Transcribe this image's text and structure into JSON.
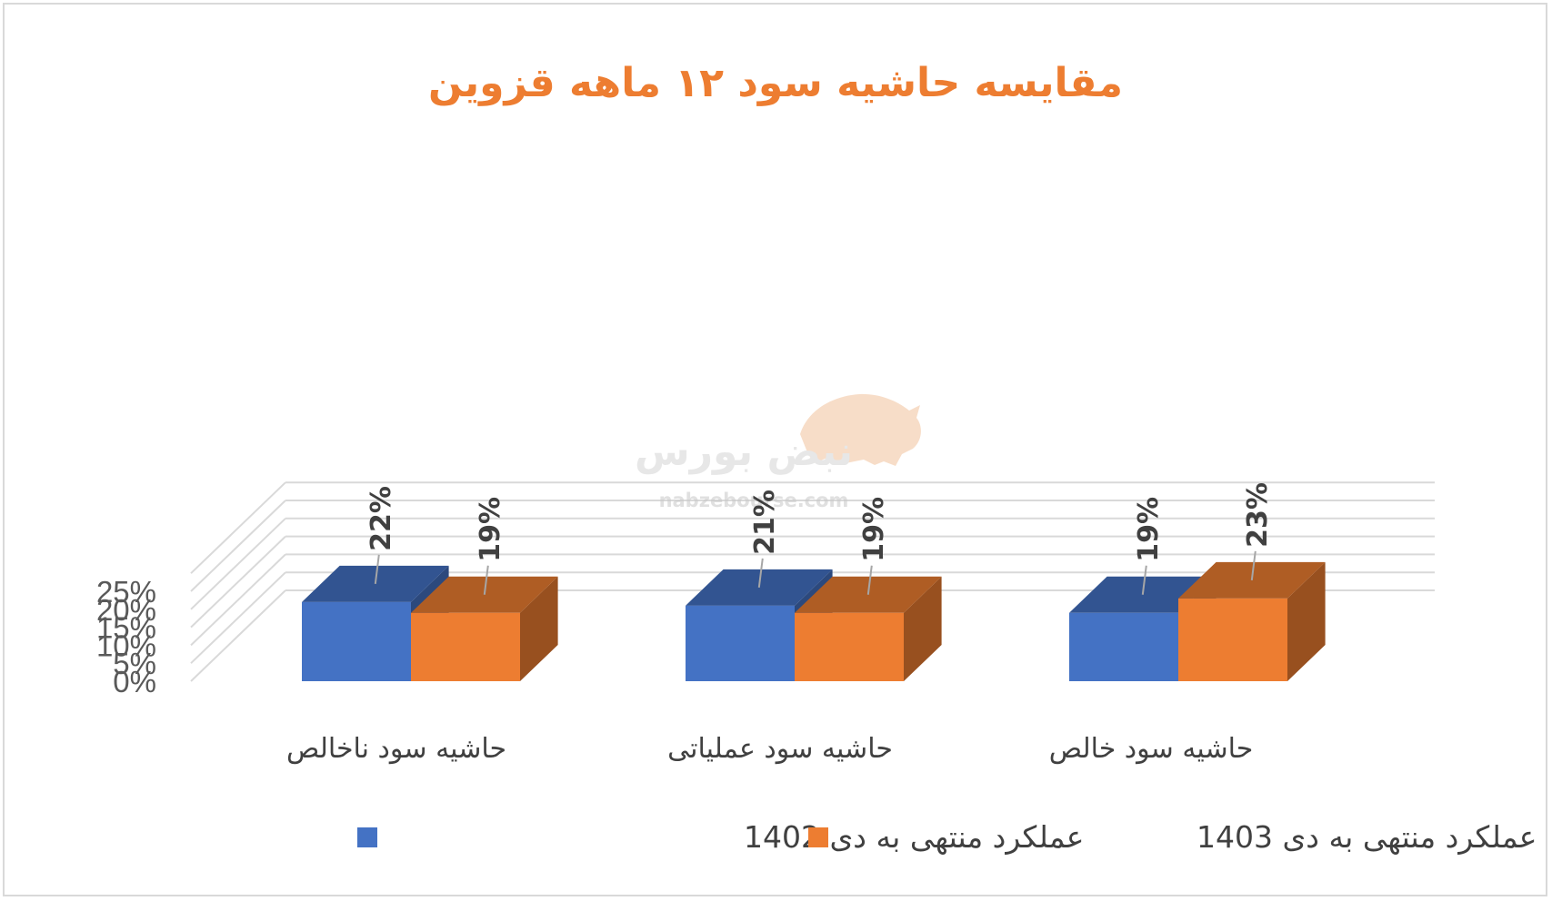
{
  "chart_data": {
    "type": "bar",
    "title": "مقایسه حاشیه سود ۱۲ ماهه قزوین",
    "categories": [
      "حاشیه سود ناخالص",
      "حاشیه سود عملیاتی",
      "حاشیه سود خالص"
    ],
    "series": [
      {
        "name": "عملکرد منتهی به دی 1402",
        "values": [
          22,
          21,
          19
        ],
        "labels": [
          "22%",
          "21%",
          "19%"
        ],
        "color": "#4472c4"
      },
      {
        "name": "عملکرد منتهی به دی 1403",
        "values": [
          19,
          19,
          23
        ],
        "labels": [
          "19%",
          "19%",
          "23%"
        ],
        "color": "#ed7d31"
      }
    ],
    "y_ticks": [
      "0%",
      "5%",
      "10%",
      "15%",
      "20%",
      "25%"
    ],
    "ylim": [
      0,
      30
    ],
    "grid": true,
    "legend_position": "bottom",
    "style": "3d-clustered-column"
  },
  "watermark": {
    "brand": "نبض بورس",
    "url": "nabzebourse.com"
  }
}
